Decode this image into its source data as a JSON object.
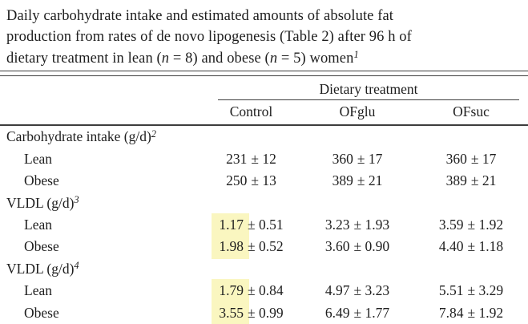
{
  "caption": {
    "lines": [
      "Daily carbohydrate intake and estimated amounts of absolute fat",
      "production from rates of de novo lipogenesis (Table 2) after 96 h of"
    ],
    "line3": {
      "t1": "dietary treatment in lean (",
      "n1": "n",
      "t2": " = 8) and obese (",
      "n2": "n",
      "t3": " = 5) women",
      "footnote": "1"
    }
  },
  "table": {
    "group_header": "Dietary treatment",
    "columns": [
      "Control",
      "OFglu",
      "OFsuc"
    ],
    "sections": [
      {
        "label": "Carbohydrate intake (g/d)",
        "footnote": "2",
        "rows": [
          {
            "label": "Lean",
            "cells": [
              {
                "value": "231",
                "pm": "± 12",
                "highlighted": false
              },
              {
                "value": "360",
                "pm": "± 17",
                "highlighted": false
              },
              {
                "value": "360",
                "pm": "± 17",
                "highlighted": false
              }
            ]
          },
          {
            "label": "Obese",
            "cells": [
              {
                "value": "250",
                "pm": "± 13",
                "highlighted": false
              },
              {
                "value": "389",
                "pm": "± 21",
                "highlighted": false
              },
              {
                "value": "389",
                "pm": "± 21",
                "highlighted": false
              }
            ]
          }
        ]
      },
      {
        "label": "VLDL (g/d)",
        "footnote": "3",
        "rows": [
          {
            "label": "Lean",
            "cells": [
              {
                "value": "1.17",
                "pm": "± 0.51",
                "highlighted": true
              },
              {
                "value": "3.23",
                "pm": "± 1.93",
                "highlighted": false
              },
              {
                "value": "3.59",
                "pm": "± 1.92",
                "highlighted": false
              }
            ]
          },
          {
            "label": "Obese",
            "cells": [
              {
                "value": "1.98",
                "pm": "± 0.52",
                "highlighted": true
              },
              {
                "value": "3.60",
                "pm": "± 0.90",
                "highlighted": false
              },
              {
                "value": "4.40",
                "pm": "± 1.18",
                "highlighted": false
              }
            ]
          }
        ]
      },
      {
        "label": "VLDL (g/d)",
        "footnote": "4",
        "rows": [
          {
            "label": "Lean",
            "cells": [
              {
                "value": "1.79",
                "pm": "± 0.84",
                "highlighted": true
              },
              {
                "value": "4.97",
                "pm": "± 3.23",
                "highlighted": false
              },
              {
                "value": "5.51",
                "pm": "± 3.29",
                "highlighted": false
              }
            ]
          },
          {
            "label": "Obese",
            "cells": [
              {
                "value": "3.55",
                "pm": "± 0.99",
                "highlighted": true
              },
              {
                "value": "6.49",
                "pm": "± 1.77",
                "highlighted": false
              },
              {
                "value": "7.84",
                "pm": "± 1.92",
                "highlighted": false
              }
            ]
          }
        ]
      }
    ]
  },
  "colors": {
    "highlight": "#faf6c0",
    "text": "#1e1e1e",
    "rule": "#3d3d3d",
    "background": "#ffffff"
  }
}
